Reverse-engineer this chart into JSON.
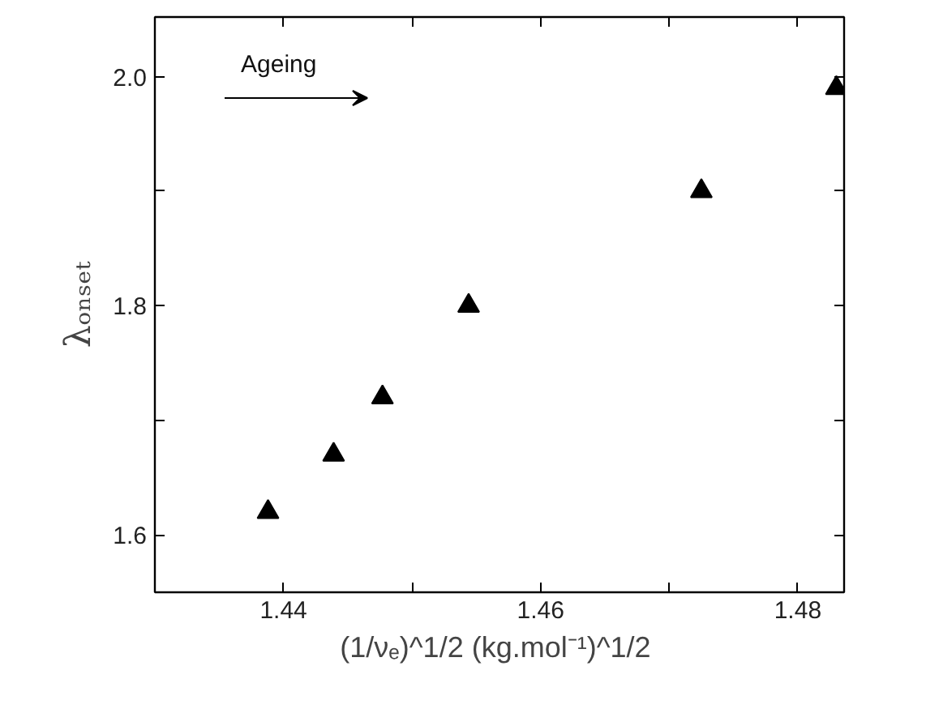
{
  "chart_data": {
    "type": "scatter",
    "xlabel": "(1/νₑ)^1/2  (kg.mol⁻¹)^1/2",
    "ylabel": "λₒₙₛₑₜ",
    "x": [
      1.4388,
      1.4439,
      1.4477,
      1.4544,
      1.4725,
      1.483
    ],
    "series": [
      {
        "color": "#000000",
        "values": [
          1.62,
          1.67,
          1.72,
          1.8,
          1.9,
          1.99
        ]
      }
    ],
    "xlim": [
      1.43,
      1.4836
    ],
    "ylim": [
      1.55,
      2.052
    ],
    "xticks": [
      1.44,
      {
        "value": 1.45,
        "label": null
      },
      1.46,
      {
        "value": 1.47,
        "label": null
      },
      1.48
    ],
    "yticks": [
      1.6,
      {
        "value": 1.7,
        "label": null
      },
      1.8,
      {
        "value": 1.9,
        "label": null
      },
      {
        "value": 2.0,
        "label": "2.0"
      }
    ],
    "annotations": [
      "Ageing"
    ],
    "marker": "triangle",
    "grid": false
  }
}
